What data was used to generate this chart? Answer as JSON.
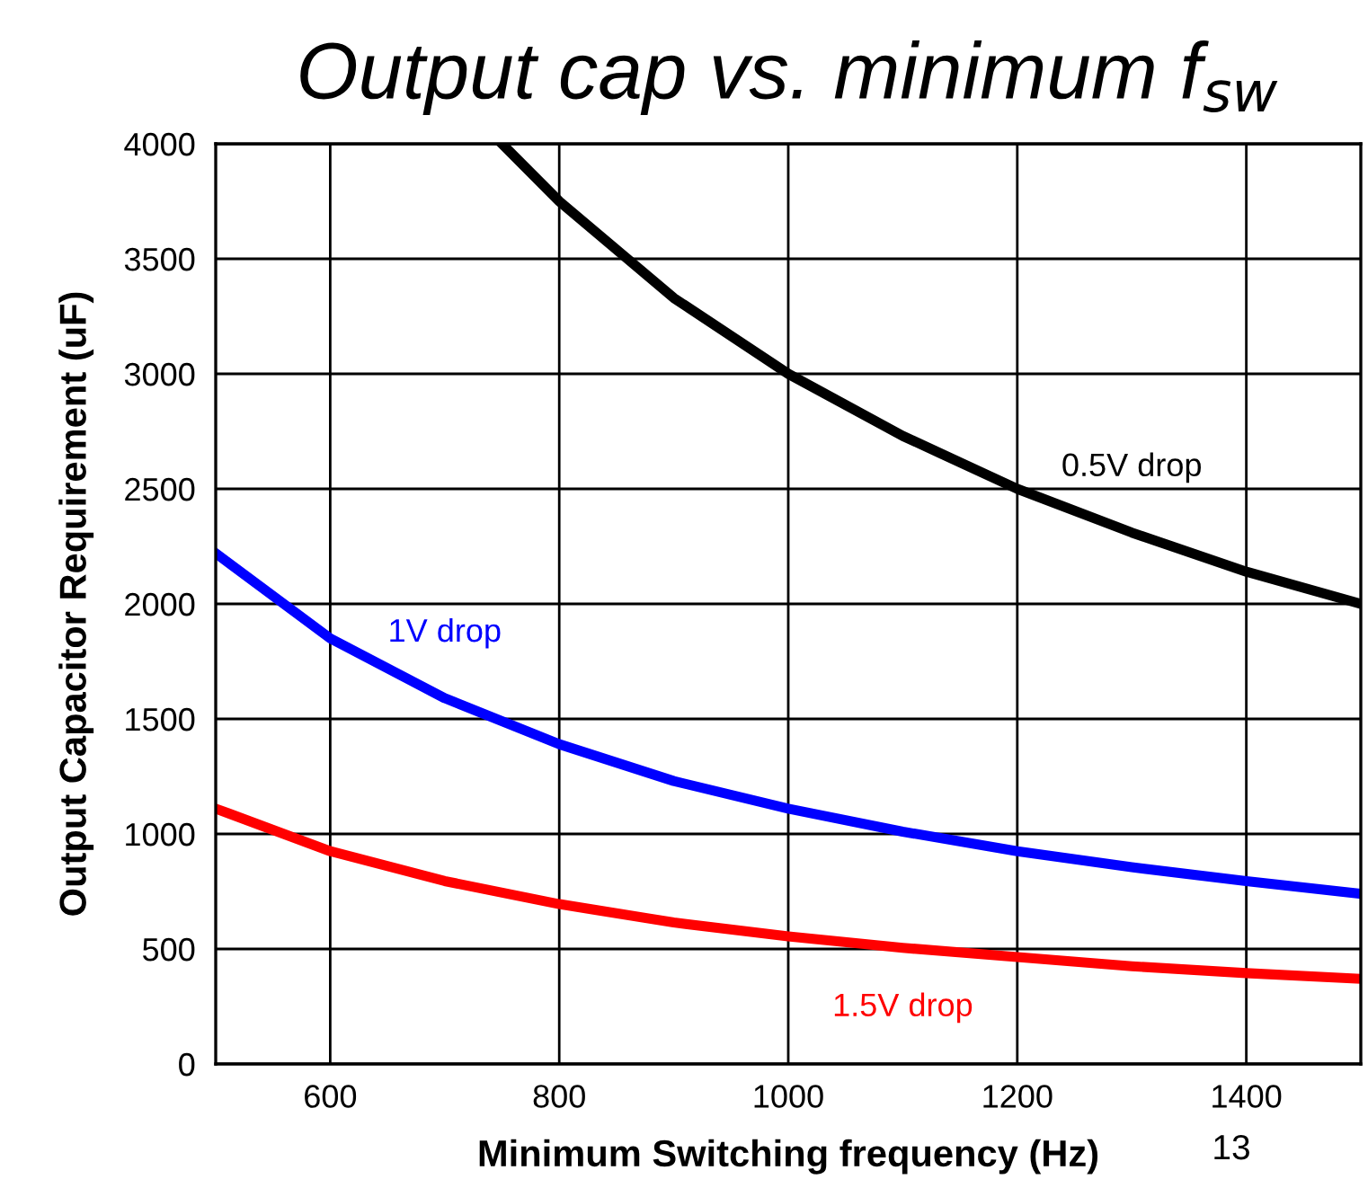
{
  "chart_data": {
    "type": "line",
    "title": "Output cap vs. minimum f$_{sw}$",
    "xlabel": "Minimum Switching frequency (Hz)",
    "ylabel": "Output Capacitor Requirement (uF)",
    "xlim": [
      500,
      1500
    ],
    "xticks": [
      600,
      800,
      1000,
      1200,
      1400
    ],
    "ylim": [
      0,
      4000
    ],
    "yticks": [
      0,
      500,
      1000,
      1500,
      2000,
      2500,
      3000,
      3500,
      4000
    ],
    "grid": true,
    "legend": false,
    "marker": "none",
    "line_style": "solid",
    "series": [
      {
        "name": "0.5V drop",
        "color": "#000000",
        "x": [
          750,
          800,
          900,
          1000,
          1100,
          1200,
          1300,
          1400,
          1500
        ],
        "values": [
          4000,
          3750,
          3330,
          3000,
          2730,
          2500,
          2310,
          2140,
          2000
        ]
      },
      {
        "name": "1V drop",
        "color": "#0000ff",
        "x": [
          500,
          600,
          700,
          800,
          900,
          1000,
          1100,
          1200,
          1300,
          1400,
          1500
        ],
        "values": [
          2220,
          1850,
          1590,
          1390,
          1230,
          1110,
          1010,
          925,
          855,
          795,
          740
        ]
      },
      {
        "name": "1.5V drop",
        "color": "#ff0000",
        "x": [
          500,
          600,
          700,
          800,
          900,
          1000,
          1100,
          1200,
          1300,
          1400,
          1500
        ],
        "values": [
          1110,
          925,
          795,
          695,
          615,
          555,
          505,
          465,
          425,
          395,
          370
        ]
      }
    ],
    "annotations": [
      "13"
    ]
  }
}
